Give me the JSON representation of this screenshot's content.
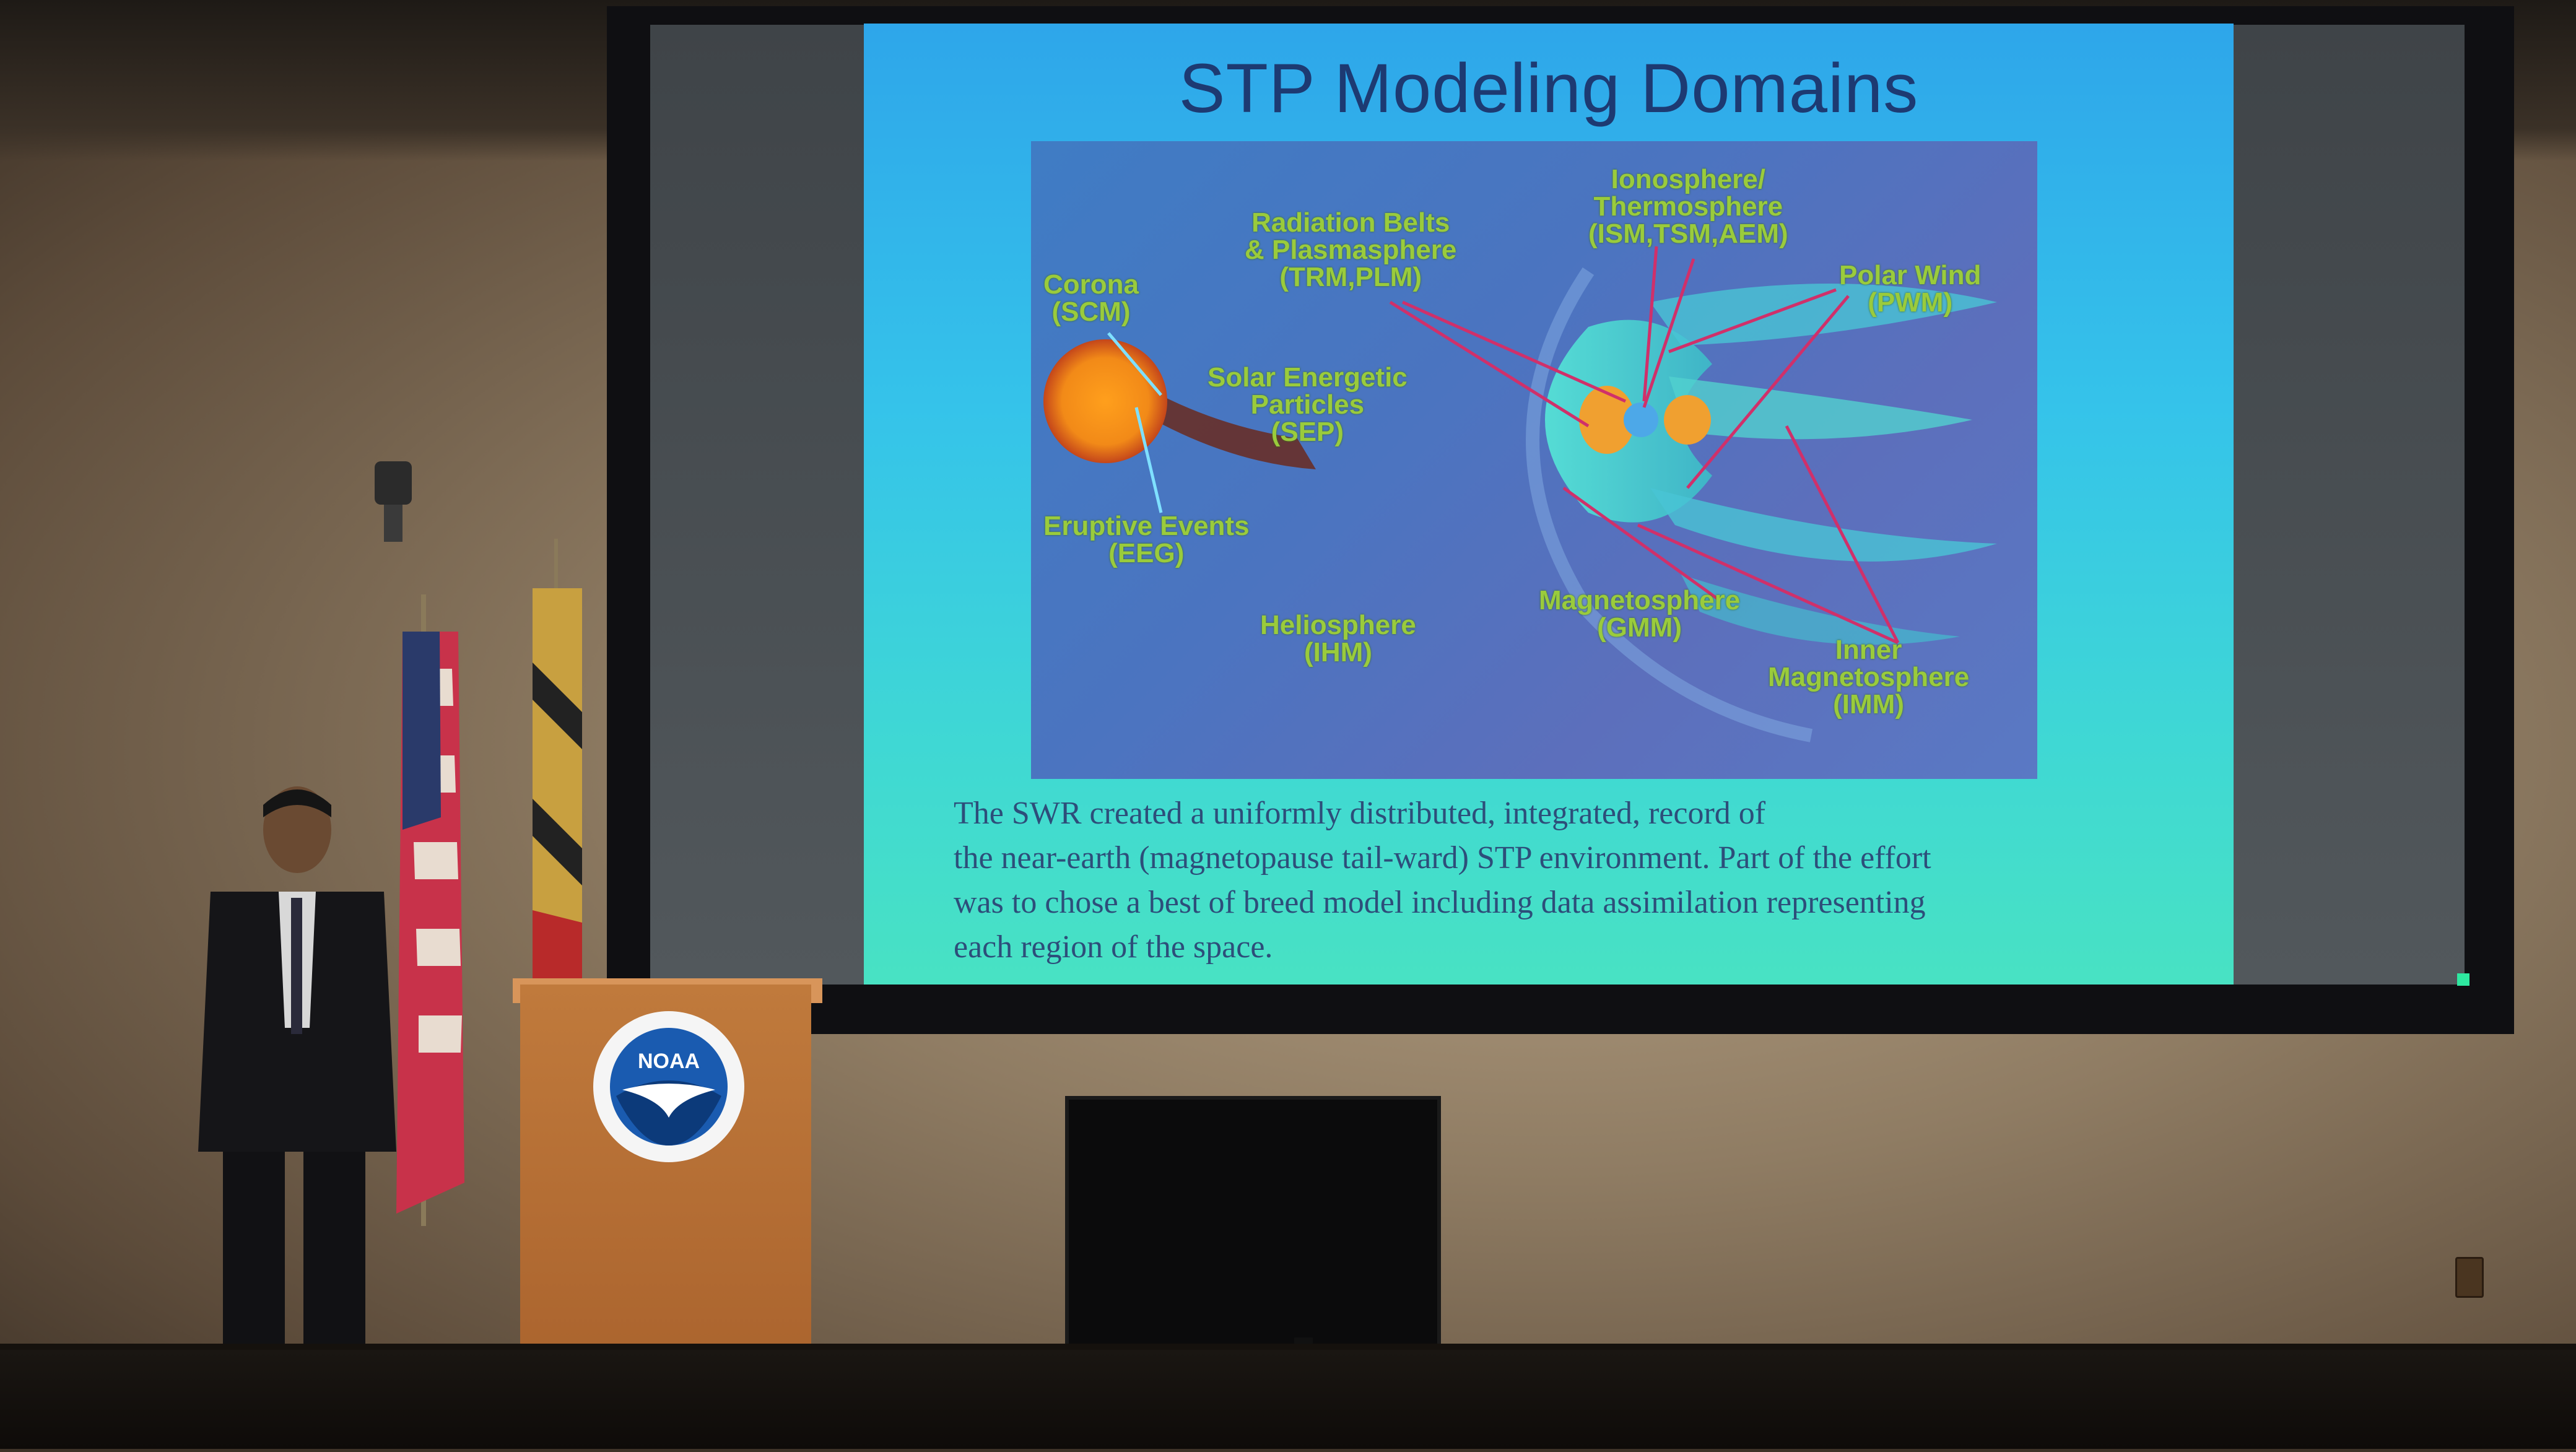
{
  "slide": {
    "title": "STP Modeling Domains",
    "top_tab_text": "",
    "labels": {
      "corona": "Corona",
      "corona_code": "(SCM)",
      "radiation": "Radiation Belts",
      "radiation2": "& Plasmasphere",
      "radiation_code": "(TRM,PLM)",
      "ionosphere": "Ionosphere/",
      "thermosphere": "Thermosphere",
      "iono_code": "(ISM,TSM,AEM)",
      "polar": "Polar Wind",
      "polar_code": "(PWM)",
      "sep": "Solar Energetic",
      "sep2": "Particles",
      "sep_code": "(SEP)",
      "eruptive": "Eruptive Events",
      "eruptive_code": "(EEG)",
      "helio": "Heliosphere",
      "helio_code": "(IHM)",
      "magneto": "Magnetosphere",
      "magneto_code": "(GMM)",
      "inner": "Inner",
      "inner2": "Magnetosphere",
      "inner_code": "(IMM)"
    },
    "caption_lines": [
      "The SWR created a uniformly distributed, integrated, record of",
      "the near-earth (magnetopause tail-ward) STP environment. Part of the effort",
      "was to chose a best of breed model including data assimilation representing",
      "each region of the space."
    ]
  },
  "podium": {
    "logo_text": "NOAA"
  },
  "colors": {
    "slide_bg": "#35c3ea",
    "title": "#1d3a72",
    "label_green": "#9acb3c",
    "arrow_red": "#d0306a",
    "podium": "#b86e34"
  }
}
